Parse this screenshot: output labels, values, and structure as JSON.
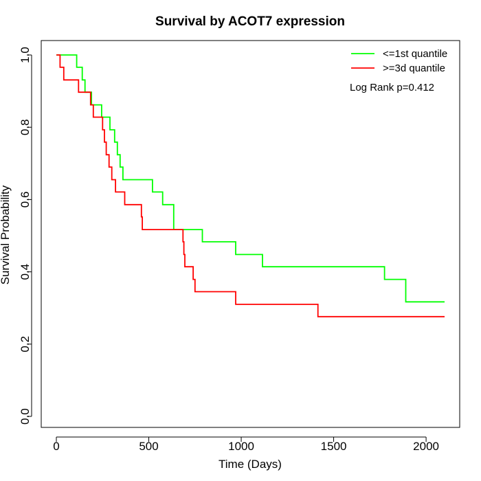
{
  "chart_data": {
    "type": "line",
    "title": "Survival by ACOT7 expression",
    "xlabel": "Time (Days)",
    "ylabel": "Survival Probability",
    "xlim": [
      0,
      2100
    ],
    "ylim": [
      0,
      1
    ],
    "xticks": [
      0,
      500,
      1000,
      1500,
      2000
    ],
    "yticks": [
      0.0,
      0.2,
      0.4,
      0.6,
      0.8,
      1.0
    ],
    "xtick_labels": [
      "0",
      "500",
      "1000",
      "1500",
      "2000"
    ],
    "ytick_labels": [
      "0.0",
      "0.2",
      "0.4",
      "0.6",
      "0.8",
      "1.0"
    ],
    "grid": false,
    "legend_position": "top-right",
    "annotation": "Log Rank p=0.412",
    "step": true,
    "series": [
      {
        "name": "<=1st quantile",
        "color": "#00ff00",
        "x": [
          0,
          110,
          140,
          155,
          190,
          245,
          290,
          315,
          330,
          345,
          360,
          520,
          575,
          635,
          790,
          970,
          1115,
          1775,
          1890,
          2100
        ],
        "y": [
          1.0,
          0.966,
          0.931,
          0.897,
          0.862,
          0.828,
          0.793,
          0.759,
          0.724,
          0.69,
          0.655,
          0.621,
          0.586,
          0.517,
          0.483,
          0.448,
          0.414,
          0.379,
          0.317,
          0.317
        ]
      },
      {
        "name": ">=3d quantile",
        "color": "#ff0000",
        "x": [
          0,
          20,
          40,
          120,
          185,
          200,
          250,
          260,
          270,
          285,
          300,
          320,
          370,
          460,
          465,
          685,
          690,
          695,
          700,
          740,
          745,
          750,
          970,
          1415,
          2100
        ],
        "y": [
          1.0,
          0.966,
          0.931,
          0.897,
          0.862,
          0.828,
          0.793,
          0.759,
          0.724,
          0.69,
          0.655,
          0.621,
          0.586,
          0.552,
          0.517,
          0.483,
          0.448,
          0.414,
          0.414,
          0.379,
          0.379,
          0.345,
          0.31,
          0.276,
          0.276
        ]
      }
    ]
  }
}
